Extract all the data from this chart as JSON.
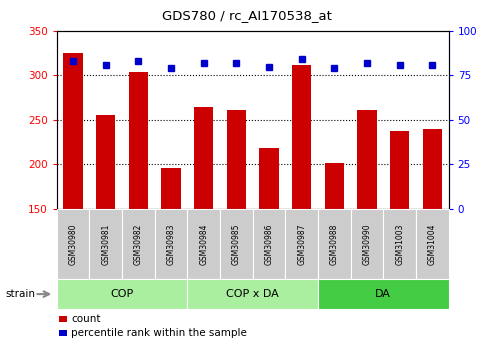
{
  "title": "GDS780 / rc_AI170538_at",
  "samples": [
    "GSM30980",
    "GSM30981",
    "GSM30982",
    "GSM30983",
    "GSM30984",
    "GSM30985",
    "GSM30986",
    "GSM30987",
    "GSM30988",
    "GSM30990",
    "GSM31003",
    "GSM31004"
  ],
  "counts": [
    325,
    255,
    304,
    196,
    265,
    261,
    218,
    312,
    201,
    261,
    237,
    240
  ],
  "percentiles": [
    83,
    81,
    83,
    79,
    82,
    82,
    80,
    84,
    79,
    82,
    81,
    81
  ],
  "groups": [
    {
      "label": "COP",
      "start": 0,
      "end": 4,
      "color": "#AAEEA0"
    },
    {
      "label": "COP x DA",
      "start": 4,
      "end": 8,
      "color": "#AAEEA0"
    },
    {
      "label": "DA",
      "start": 8,
      "end": 12,
      "color": "#44CC44"
    }
  ],
  "ylim_left": [
    150,
    350
  ],
  "ylim_right": [
    0,
    100
  ],
  "yticks_left": [
    150,
    200,
    250,
    300,
    350
  ],
  "yticks_right": [
    0,
    25,
    50,
    75,
    100
  ],
  "bar_color": "#CC0000",
  "dot_color": "#0000CC",
  "sample_box_color": "#CCCCCC",
  "legend_count_label": "count",
  "legend_pct_label": "percentile rank within the sample",
  "strain_label": "strain",
  "gridlines_at": [
    200,
    250,
    300
  ]
}
